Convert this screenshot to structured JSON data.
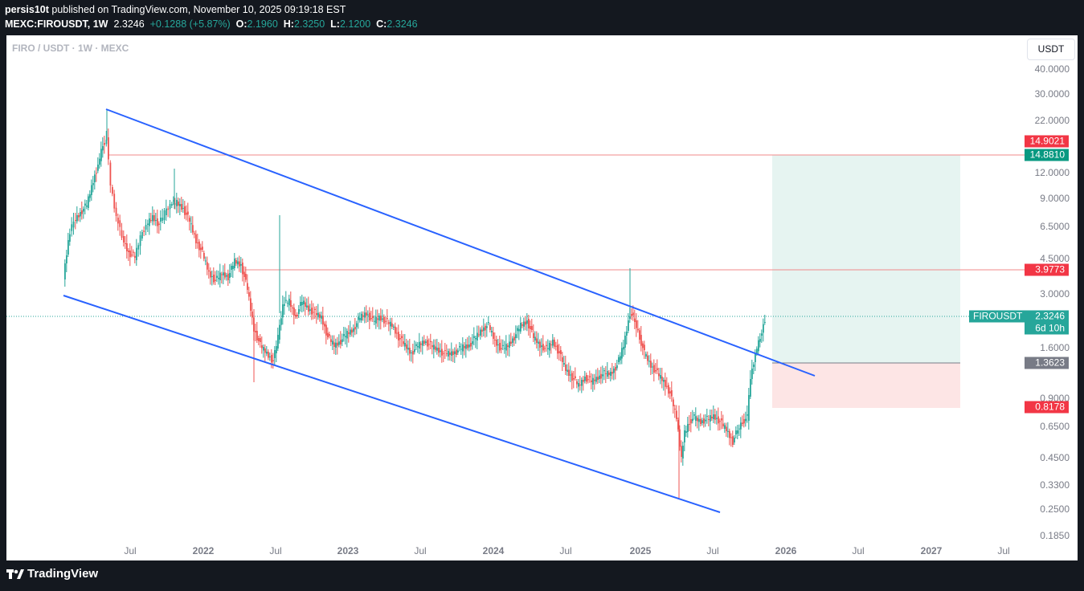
{
  "header": {
    "author": "persis10t",
    "published_text": "published on TradingView.com, November 10, 2025 09:19:18 EST",
    "symbol": "MEXC:FIROUSDT, 1W",
    "price": "2.3246",
    "change": "+0.1288 (+5.87%)",
    "o_label": "O:",
    "o": "2.1960",
    "h_label": "H:",
    "h": "2.3250",
    "l_label": "L:",
    "l": "2.1200",
    "c_label": "C:",
    "c": "2.3246"
  },
  "legend": "FIRO / USDT · 1W · MEXC",
  "currency_button": "USDT",
  "y_axis": [
    "40.0000",
    "30.0000",
    "22.0000",
    "12.0000",
    "9.0000",
    "6.5000",
    "4.5000",
    "3.0000",
    "1.6000",
    "0.9000",
    "0.6500",
    "0.4500",
    "0.3300",
    "0.2500",
    "0.1850"
  ],
  "x_axis": [
    {
      "label": "Jul",
      "bold": false
    },
    {
      "label": "2022",
      "bold": true
    },
    {
      "label": "Jul",
      "bold": false
    },
    {
      "label": "2023",
      "bold": true
    },
    {
      "label": "Jul",
      "bold": false
    },
    {
      "label": "2024",
      "bold": true
    },
    {
      "label": "Jul",
      "bold": false
    },
    {
      "label": "2025",
      "bold": true
    },
    {
      "label": "Jul",
      "bold": false
    },
    {
      "label": "2026",
      "bold": true
    },
    {
      "label": "Jul",
      "bold": false
    },
    {
      "label": "2027",
      "bold": true
    },
    {
      "label": "Jul",
      "bold": false
    }
  ],
  "price_tags": {
    "target_top": "14.9021",
    "target": "14.8810",
    "resistance": "3.9773",
    "symbol_name": "FIROUSDT",
    "last_price": "2.3246",
    "countdown": "6d 10h",
    "entry": "1.3623",
    "stop": "0.8178"
  },
  "colors": {
    "up": "#26a69a",
    "down": "#ef5350",
    "channel": "#2962ff",
    "target_zone": "#e6f4f1",
    "stop_zone": "#fde5e5",
    "hline": "#f08a8a"
  },
  "footer": {
    "brand": "TradingView"
  },
  "chart_data": {
    "type": "candlestick",
    "symbol": "FIROUSDT",
    "timeframe": "1W",
    "y_scale": "log",
    "levels": [
      14.9021,
      14.881,
      3.9773,
      2.3246,
      1.3623,
      0.8178
    ],
    "channel_upper": [
      {
        "date": "2021-04",
        "price": 26
      },
      {
        "date": "2025-10",
        "price": 1.15
      }
    ],
    "channel_lower": [
      {
        "date": "2021-01",
        "price": 2.3
      },
      {
        "date": "2025-05",
        "price": 0.24
      }
    ],
    "position": {
      "entry": 1.3623,
      "target": 14.881,
      "stop": 0.8178
    },
    "candles": []
  }
}
